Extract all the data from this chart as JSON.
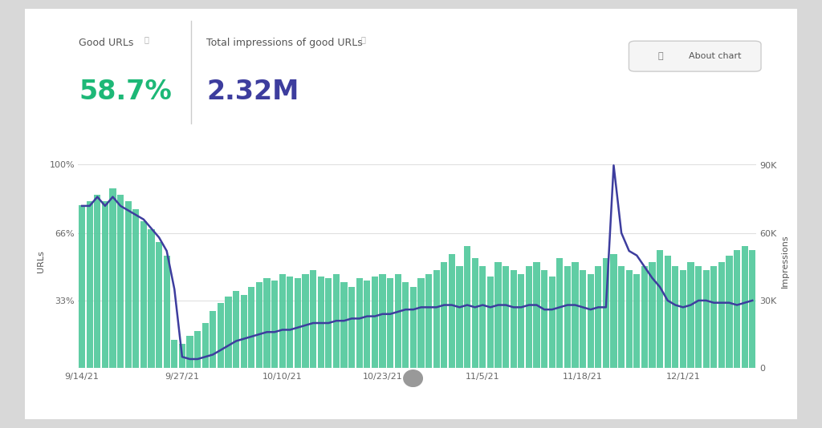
{
  "good_urls_pct": "58.7%",
  "good_urls_label": "Good URLs",
  "impressions_total": "2.32M",
  "impressions_label": "Total impressions of good URLs",
  "about_chart_text": "About chart",
  "left_axis_label": "URLs",
  "right_axis_label": "Impressions",
  "x_tick_labels": [
    "9/14/21",
    "9/27/21",
    "10/10/21",
    "10/23/21",
    "11/5/21",
    "11/18/21",
    "12/1/21"
  ],
  "left_ytick_labels": [
    "",
    "33%",
    "66%",
    "100%"
  ],
  "right_ytick_labels": [
    "0",
    "30K",
    "60K",
    "90K"
  ],
  "bar_color": "#4FC89A",
  "line_color": "#3D3D9E",
  "bg_color": "#ffffff",
  "outer_bg": "#d8d8d8",
  "good_urls_color": "#1DB877",
  "impressions_color": "#3D3D9E",
  "bar_data": [
    80,
    82,
    85,
    82,
    88,
    85,
    82,
    78,
    72,
    68,
    62,
    55,
    14,
    12,
    16,
    18,
    22,
    28,
    32,
    35,
    38,
    36,
    40,
    42,
    44,
    43,
    46,
    45,
    44,
    46,
    48,
    45,
    44,
    46,
    42,
    40,
    44,
    43,
    45,
    46,
    44,
    46,
    42,
    40,
    44,
    46,
    48,
    52,
    56,
    50,
    60,
    54,
    50,
    45,
    52,
    50,
    48,
    46,
    50,
    52,
    48,
    45,
    54,
    50,
    52,
    48,
    46,
    50,
    54,
    56,
    50,
    48,
    46,
    50,
    52,
    58,
    55,
    50,
    48,
    52,
    50,
    48,
    50,
    52,
    55,
    58,
    60,
    58
  ],
  "line_data_k": [
    72,
    72,
    76,
    72,
    76,
    72,
    70,
    68,
    66,
    62,
    58,
    52,
    35,
    5,
    4,
    4,
    5,
    6,
    8,
    10,
    12,
    13,
    14,
    15,
    16,
    16,
    17,
    17,
    18,
    19,
    20,
    20,
    20,
    21,
    21,
    22,
    22,
    23,
    23,
    24,
    24,
    25,
    26,
    26,
    27,
    27,
    27,
    28,
    28,
    27,
    28,
    27,
    28,
    27,
    28,
    28,
    27,
    27,
    28,
    28,
    26,
    26,
    27,
    28,
    28,
    27,
    26,
    27,
    27,
    90,
    60,
    52,
    50,
    45,
    40,
    36,
    30,
    28,
    27,
    28,
    30,
    30,
    29,
    29,
    29,
    28,
    29,
    30
  ],
  "n_bars": 88
}
